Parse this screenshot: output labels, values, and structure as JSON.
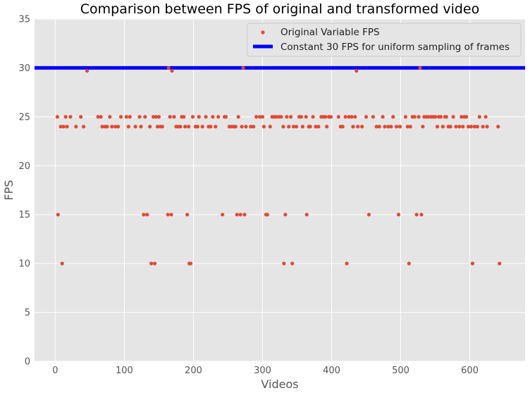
{
  "chart_data": {
    "type": "scatter",
    "title": "Comparison between FPS of original and transformed video",
    "xlabel": "Videos",
    "ylabel": "FPS",
    "xlim": [
      -30,
      680
    ],
    "ylim": [
      0,
      35
    ],
    "xticks": [
      "0",
      "100",
      "200",
      "300",
      "400",
      "500",
      "600"
    ],
    "yticks": [
      "0",
      "5",
      "10",
      "15",
      "20",
      "25",
      "30",
      "35"
    ],
    "grid": true,
    "legend_position": "top-right",
    "colors": {
      "scatter": "#E24A33",
      "line": "#0000FF",
      "background": "#E5E5E5",
      "grid": "#FFFFFF"
    },
    "series": [
      {
        "name": "Original Variable FPS",
        "kind": "scatter",
        "points": [
          [
            3,
            25
          ],
          [
            4,
            15
          ],
          [
            8,
            24
          ],
          [
            10,
            10
          ],
          [
            12,
            24
          ],
          [
            15,
            25
          ],
          [
            17,
            24
          ],
          [
            22,
            25
          ],
          [
            30,
            24
          ],
          [
            37,
            25
          ],
          [
            41,
            24
          ],
          [
            46,
            29.7
          ],
          [
            62,
            25
          ],
          [
            66,
            25
          ],
          [
            68,
            24
          ],
          [
            72,
            24
          ],
          [
            75,
            24
          ],
          [
            79,
            25
          ],
          [
            82,
            24
          ],
          [
            87,
            24
          ],
          [
            91,
            24
          ],
          [
            95,
            25
          ],
          [
            103,
            25
          ],
          [
            106,
            24
          ],
          [
            108,
            25
          ],
          [
            116,
            24
          ],
          [
            122,
            25
          ],
          [
            124,
            24
          ],
          [
            128,
            15
          ],
          [
            130,
            25
          ],
          [
            133,
            15
          ],
          [
            137,
            24
          ],
          [
            139,
            10
          ],
          [
            142,
            25
          ],
          [
            144,
            10
          ],
          [
            146,
            25
          ],
          [
            148,
            24
          ],
          [
            150,
            25
          ],
          [
            152,
            24
          ],
          [
            155,
            24
          ],
          [
            163,
            15
          ],
          [
            164,
            30
          ],
          [
            166,
            25
          ],
          [
            168,
            15
          ],
          [
            169,
            29.7
          ],
          [
            172,
            25
          ],
          [
            175,
            24
          ],
          [
            178,
            24
          ],
          [
            181,
            24
          ],
          [
            183,
            25
          ],
          [
            186,
            25
          ],
          [
            188,
            24
          ],
          [
            191,
            15
          ],
          [
            193,
            24
          ],
          [
            194,
            10
          ],
          [
            196,
            10
          ],
          [
            199,
            25
          ],
          [
            203,
            24
          ],
          [
            206,
            24
          ],
          [
            208,
            25
          ],
          [
            213,
            24
          ],
          [
            218,
            25
          ],
          [
            222,
            24
          ],
          [
            225,
            24
          ],
          [
            228,
            25
          ],
          [
            232,
            24
          ],
          [
            236,
            25
          ],
          [
            242,
            15
          ],
          [
            245,
            25
          ],
          [
            247,
            25
          ],
          [
            252,
            24
          ],
          [
            255,
            24
          ],
          [
            258,
            24
          ],
          [
            261,
            24
          ],
          [
            263,
            15
          ],
          [
            265,
            25
          ],
          [
            268,
            15
          ],
          [
            270,
            24
          ],
          [
            272,
            30
          ],
          [
            274,
            15
          ],
          [
            276,
            24
          ],
          [
            283,
            24
          ],
          [
            287,
            24
          ],
          [
            291,
            25
          ],
          [
            296,
            25
          ],
          [
            300,
            25
          ],
          [
            302,
            24
          ],
          [
            305,
            15
          ],
          [
            307,
            15
          ],
          [
            311,
            24
          ],
          [
            314,
            25
          ],
          [
            317,
            25
          ],
          [
            320,
            25
          ],
          [
            324,
            25
          ],
          [
            327,
            25
          ],
          [
            330,
            24
          ],
          [
            331,
            10
          ],
          [
            333,
            15
          ],
          [
            335,
            25
          ],
          [
            338,
            24
          ],
          [
            341,
            25
          ],
          [
            343,
            10
          ],
          [
            345,
            24
          ],
          [
            349,
            24
          ],
          [
            353,
            25
          ],
          [
            356,
            25
          ],
          [
            358,
            24
          ],
          [
            363,
            25
          ],
          [
            364,
            15
          ],
          [
            367,
            24
          ],
          [
            369,
            24
          ],
          [
            373,
            25
          ],
          [
            377,
            24
          ],
          [
            381,
            24
          ],
          [
            385,
            25
          ],
          [
            388,
            25
          ],
          [
            391,
            25
          ],
          [
            393,
            24
          ],
          [
            396,
            25
          ],
          [
            399,
            25
          ],
          [
            410,
            25
          ],
          [
            413,
            24
          ],
          [
            416,
            24
          ],
          [
            420,
            25
          ],
          [
            422,
            10
          ],
          [
            425,
            25
          ],
          [
            429,
            25
          ],
          [
            431,
            24
          ],
          [
            434,
            25
          ],
          [
            436,
            29.7
          ],
          [
            438,
            24
          ],
          [
            444,
            24
          ],
          [
            450,
            25
          ],
          [
            454,
            15
          ],
          [
            460,
            25
          ],
          [
            465,
            24
          ],
          [
            469,
            24
          ],
          [
            474,
            25
          ],
          [
            477,
            24
          ],
          [
            482,
            24
          ],
          [
            486,
            24
          ],
          [
            489,
            25
          ],
          [
            494,
            24
          ],
          [
            497,
            15
          ],
          [
            499,
            24
          ],
          [
            507,
            25
          ],
          [
            510,
            24
          ],
          [
            512,
            10
          ],
          [
            514,
            24
          ],
          [
            517,
            25
          ],
          [
            520,
            25
          ],
          [
            523,
            15
          ],
          [
            526,
            25
          ],
          [
            528,
            30
          ],
          [
            530,
            15
          ],
          [
            532,
            24
          ],
          [
            534,
            25
          ],
          [
            537,
            25
          ],
          [
            540,
            25
          ],
          [
            544,
            25
          ],
          [
            547,
            25
          ],
          [
            550,
            25
          ],
          [
            553,
            24
          ],
          [
            555,
            25
          ],
          [
            558,
            25
          ],
          [
            561,
            24
          ],
          [
            564,
            25
          ],
          [
            566,
            25
          ],
          [
            569,
            24
          ],
          [
            572,
            24
          ],
          [
            576,
            25
          ],
          [
            580,
            24
          ],
          [
            585,
            24
          ],
          [
            588,
            25
          ],
          [
            590,
            24
          ],
          [
            592,
            25
          ],
          [
            595,
            25
          ],
          [
            598,
            24
          ],
          [
            602,
            24
          ],
          [
            604,
            10
          ],
          [
            607,
            24
          ],
          [
            611,
            24
          ],
          [
            614,
            25
          ],
          [
            619,
            24
          ],
          [
            623,
            25
          ],
          [
            625,
            24
          ],
          [
            641,
            24
          ],
          [
            643,
            10
          ]
        ]
      },
      {
        "name": "Constant 30 FPS for uniform sampling of frames",
        "kind": "line",
        "y": 30
      }
    ]
  }
}
